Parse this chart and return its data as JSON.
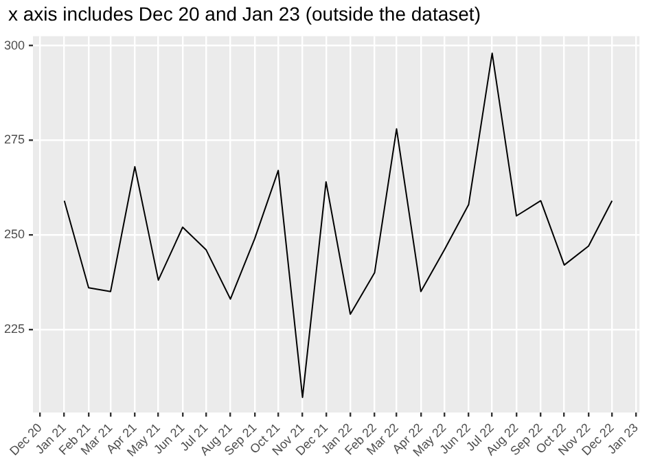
{
  "chart_data": {
    "type": "line",
    "title": "x axis includes Dec 20 and Jan 23 (outside the dataset)",
    "x": [
      "2021-01",
      "2021-02",
      "2021-03",
      "2021-04",
      "2021-05",
      "2021-06",
      "2021-07",
      "2021-08",
      "2021-09",
      "2021-10",
      "2021-11",
      "2021-12",
      "2022-01",
      "2022-02",
      "2022-03",
      "2022-04",
      "2022-05",
      "2022-06",
      "2022-07",
      "2022-08",
      "2022-09",
      "2022-10",
      "2022-11",
      "2022-12"
    ],
    "series": [
      {
        "color": "#000000",
        "values": [
          259,
          236,
          235,
          268,
          238,
          252,
          246,
          233,
          249,
          267,
          207,
          264,
          229,
          240,
          278,
          235,
          246,
          258,
          298,
          255,
          259,
          242,
          247,
          259
        ]
      }
    ],
    "xlim": [
      "2020-11-22",
      "2023-01-05"
    ],
    "xticks": [
      {
        "value": "2020-12",
        "label": "Dec 20"
      },
      {
        "value": "2021-01",
        "label": "Jan 21"
      },
      {
        "value": "2021-02",
        "label": "Feb 21"
      },
      {
        "value": "2021-03",
        "label": "Mar 21"
      },
      {
        "value": "2021-04",
        "label": "Apr 21"
      },
      {
        "value": "2021-05",
        "label": "May 21"
      },
      {
        "value": "2021-06",
        "label": "Jun 21"
      },
      {
        "value": "2021-07",
        "label": "Jul 21"
      },
      {
        "value": "2021-08",
        "label": "Aug 21"
      },
      {
        "value": "2021-09",
        "label": "Sep 21"
      },
      {
        "value": "2021-10",
        "label": "Oct 21"
      },
      {
        "value": "2021-11",
        "label": "Nov 21"
      },
      {
        "value": "2021-12",
        "label": "Dec 21"
      },
      {
        "value": "2022-01",
        "label": "Jan 22"
      },
      {
        "value": "2022-02",
        "label": "Feb 22"
      },
      {
        "value": "2022-03",
        "label": "Mar 22"
      },
      {
        "value": "2022-04",
        "label": "Apr 22"
      },
      {
        "value": "2022-05",
        "label": "May 22"
      },
      {
        "value": "2022-06",
        "label": "Jun 22"
      },
      {
        "value": "2022-07",
        "label": "Jul 22"
      },
      {
        "value": "2022-08",
        "label": "Aug 22"
      },
      {
        "value": "2022-09",
        "label": "Sep 22"
      },
      {
        "value": "2022-10",
        "label": "Oct 22"
      },
      {
        "value": "2022-11",
        "label": "Nov 22"
      },
      {
        "value": "2022-12",
        "label": "Dec 22"
      },
      {
        "value": "2023-01",
        "label": "Jan 23"
      }
    ],
    "ylim": [
      203,
      302.5
    ],
    "yticks": [
      225,
      250,
      275,
      300
    ],
    "grid": true,
    "legend": false,
    "marker": "none",
    "line_style": "solid"
  }
}
